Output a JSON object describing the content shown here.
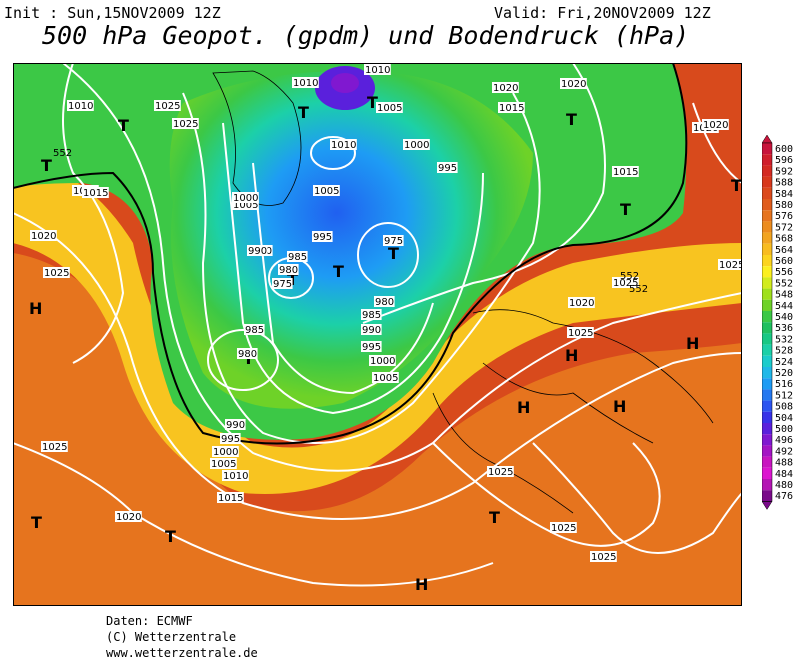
{
  "header": {
    "init": "Init : Sun,15NOV2009 12Z",
    "valid": "Valid: Fri,20NOV2009 12Z",
    "title": "500 hPa Geopot. (gpdm) und Bodendruck (hPa)"
  },
  "footer": {
    "line1": "Daten: ECMWF",
    "line2": "(C) Wetterzentrale",
    "line3": "www.wetterzentrale.de"
  },
  "legend": {
    "values": [
      "600",
      "596",
      "592",
      "588",
      "584",
      "580",
      "576",
      "572",
      "568",
      "564",
      "560",
      "556",
      "552",
      "548",
      "544",
      "540",
      "536",
      "532",
      "528",
      "524",
      "520",
      "516",
      "512",
      "508",
      "504",
      "500",
      "496",
      "492",
      "488",
      "484",
      "480",
      "476"
    ],
    "colors": [
      "#c8143c",
      "#d01e2c",
      "#d42a22",
      "#d8381c",
      "#dc4a1c",
      "#e05c1c",
      "#e6741e",
      "#ec8c1e",
      "#f2a420",
      "#f8bc20",
      "#fcd41e",
      "#fcf01e",
      "#d2ec1c",
      "#a0e01c",
      "#6ed228",
      "#3cc846",
      "#20c060",
      "#18c884",
      "#1cd0a8",
      "#1ccccc",
      "#20b8e8",
      "#1e9cf4",
      "#2478f0",
      "#2c54f0",
      "#3832e8",
      "#5a20dc",
      "#8018d0",
      "#a414c4",
      "#c814c0",
      "#dc14d0",
      "#b414b4",
      "#7a0a8a"
    ]
  },
  "map": {
    "symbols": [
      "T",
      "T",
      "T",
      "T",
      "T",
      "T",
      "T",
      "T",
      "T",
      "T",
      "T",
      "H",
      "H",
      "H",
      "H",
      "H",
      "H",
      "T",
      "T",
      "T"
    ],
    "isobar_labels": [
      "1010",
      "1010",
      "1025",
      "1025",
      "1020",
      "1010",
      "1020",
      "1015",
      "1020",
      "1005",
      "1015",
      "1015",
      "1010",
      "1000",
      "1005",
      "995",
      "1005",
      "1000",
      "990",
      "995",
      "975",
      "990",
      "985",
      "980",
      "975",
      "980",
      "985",
      "990",
      "995",
      "1000",
      "1005",
      "985",
      "980",
      "990",
      "995",
      "1000",
      "1005",
      "1010",
      "1015",
      "1020",
      "1025",
      "1020",
      "1015",
      "1025",
      "1025",
      "1025",
      "1025",
      "1020",
      "1025",
      "1025",
      "1020",
      "1025",
      "552",
      "552",
      "552"
    ]
  }
}
